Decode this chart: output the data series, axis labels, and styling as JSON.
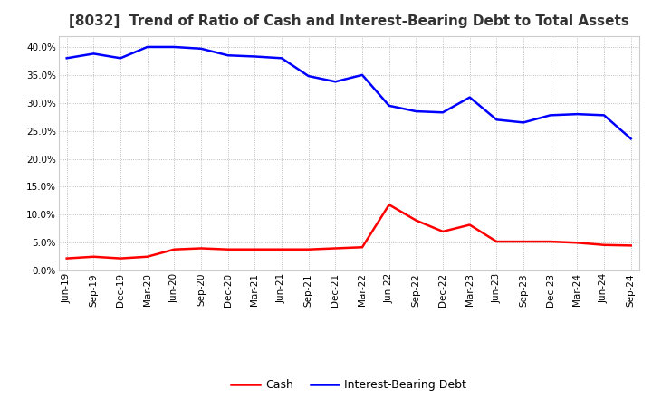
{
  "title": "[8032]  Trend of Ratio of Cash and Interest-Bearing Debt to Total Assets",
  "x_labels": [
    "Jun-19",
    "Sep-19",
    "Dec-19",
    "Mar-20",
    "Jun-20",
    "Sep-20",
    "Dec-20",
    "Mar-21",
    "Jun-21",
    "Sep-21",
    "Dec-21",
    "Mar-22",
    "Jun-22",
    "Sep-22",
    "Dec-22",
    "Mar-23",
    "Jun-23",
    "Sep-23",
    "Dec-23",
    "Mar-24",
    "Jun-24",
    "Sep-24"
  ],
  "cash": [
    0.022,
    0.025,
    0.022,
    0.025,
    0.038,
    0.04,
    0.038,
    0.038,
    0.038,
    0.038,
    0.04,
    0.042,
    0.118,
    0.09,
    0.07,
    0.082,
    0.052,
    0.052,
    0.052,
    0.05,
    0.046,
    0.045
  ],
  "ibd": [
    0.38,
    0.388,
    0.38,
    0.4,
    0.4,
    0.397,
    0.385,
    0.383,
    0.38,
    0.348,
    0.338,
    0.35,
    0.295,
    0.285,
    0.283,
    0.31,
    0.27,
    0.265,
    0.278,
    0.28,
    0.278,
    0.236
  ],
  "cash_color": "#ff0000",
  "ibd_color": "#0000ff",
  "bg_color": "#ffffff",
  "plot_bg_color": "#ffffff",
  "grid_color": "#aaaaaa",
  "ylim": [
    0.0,
    0.42
  ],
  "yticks": [
    0.0,
    0.05,
    0.1,
    0.15,
    0.2,
    0.25,
    0.3,
    0.35,
    0.4
  ],
  "legend_cash": "Cash",
  "legend_ibd": "Interest-Bearing Debt",
  "line_width": 1.8,
  "title_fontsize": 11,
  "tick_fontsize": 7.5
}
